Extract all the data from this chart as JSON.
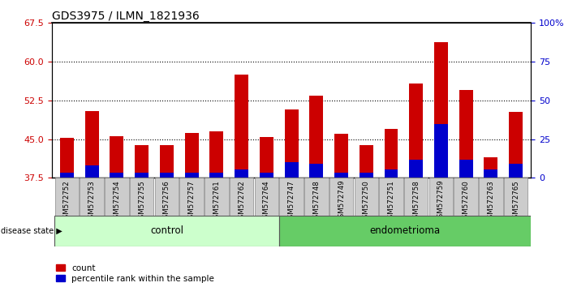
{
  "title": "GDS3975 / ILMN_1821936",
  "samples": [
    "GSM572752",
    "GSM572753",
    "GSM572754",
    "GSM572755",
    "GSM572756",
    "GSM572757",
    "GSM572761",
    "GSM572762",
    "GSM572764",
    "GSM572747",
    "GSM572748",
    "GSM572749",
    "GSM572750",
    "GSM572751",
    "GSM572758",
    "GSM572759",
    "GSM572760",
    "GSM572763",
    "GSM572765"
  ],
  "count_values": [
    45.3,
    50.5,
    45.6,
    43.8,
    43.9,
    46.2,
    46.5,
    57.5,
    45.5,
    50.8,
    53.5,
    46.0,
    43.8,
    47.0,
    55.8,
    63.8,
    54.5,
    41.5,
    50.3
  ],
  "percentile_values": [
    3.5,
    8.0,
    3.5,
    3.5,
    3.5,
    3.5,
    3.5,
    5.5,
    3.5,
    10.0,
    9.0,
    3.5,
    3.5,
    5.5,
    12.0,
    35.0,
    12.0,
    5.5,
    9.0
  ],
  "baseline": 37.5,
  "ylim_left": [
    37.5,
    67.5
  ],
  "ylim_right": [
    0,
    100
  ],
  "yticks_left": [
    37.5,
    45.0,
    52.5,
    60.0,
    67.5
  ],
  "yticks_right": [
    0,
    25,
    50,
    75,
    100
  ],
  "ytick_labels_right": [
    "0",
    "25",
    "50",
    "75",
    "100%"
  ],
  "grid_values": [
    45.0,
    52.5,
    60.0
  ],
  "bar_color": "#cc0000",
  "percentile_color": "#0000cc",
  "control_count": 9,
  "control_label": "control",
  "endometrioma_label": "endometrioma",
  "disease_state_label": "disease state",
  "legend_count": "count",
  "legend_percentile": "percentile rank within the sample",
  "control_bg": "#ccffcc",
  "endometrioma_bg": "#66cc66",
  "bar_width": 0.55,
  "title_fontsize": 10,
  "axis_label_color_left": "#cc0000",
  "axis_label_color_right": "#0000cc",
  "tick_bg_color": "#cccccc"
}
